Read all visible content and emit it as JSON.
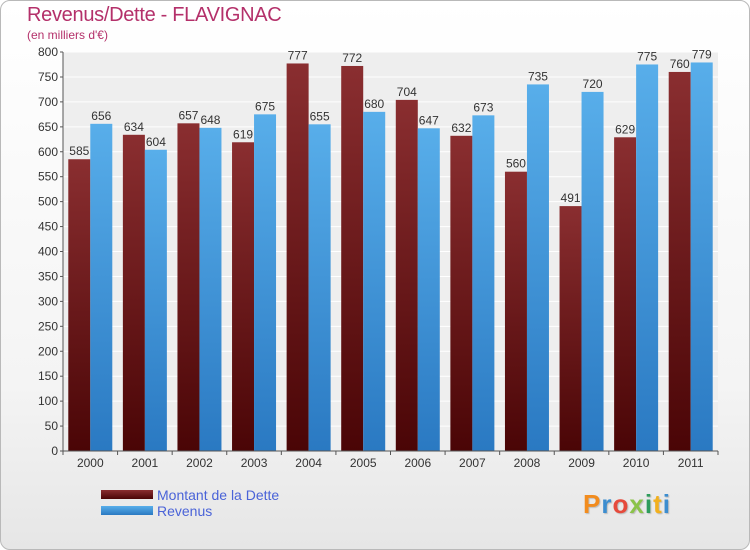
{
  "title": "Revenus/Dette - FLAVIGNAC",
  "subtitle": "(en milliers d'€)",
  "logo": {
    "text": "Proxiti",
    "colors": [
      "#f28c1e",
      "#3c8dcf",
      "#e64a3c",
      "#8bc34a",
      "#2e9c5c",
      "#f2b01e",
      "#3c8dcf"
    ]
  },
  "colors": {
    "dette": "#7a1e22",
    "revenus": "#4ea1e0",
    "title": "#b4306a",
    "legend_text": "#4a63d8"
  },
  "chart_data": {
    "type": "bar",
    "title": "Revenus/Dette - FLAVIGNAC",
    "ylabel": "(en milliers d'€)",
    "ylim": [
      0,
      800
    ],
    "yticks": [
      0,
      50,
      100,
      150,
      200,
      250,
      300,
      350,
      400,
      450,
      500,
      550,
      600,
      650,
      700,
      750,
      800
    ],
    "grid": true,
    "legend_position": "bottom-left",
    "categories": [
      "2000",
      "2001",
      "2002",
      "2003",
      "2004",
      "2005",
      "2006",
      "2007",
      "2008",
      "2009",
      "2010",
      "2011"
    ],
    "series": [
      {
        "name": "Montant de la Dette",
        "values": [
          585,
          634,
          657,
          619,
          777,
          772,
          704,
          632,
          560,
          491,
          629,
          760
        ]
      },
      {
        "name": "Revenus",
        "values": [
          656,
          604,
          648,
          675,
          655,
          680,
          647,
          673,
          735,
          720,
          775,
          779
        ]
      }
    ]
  }
}
